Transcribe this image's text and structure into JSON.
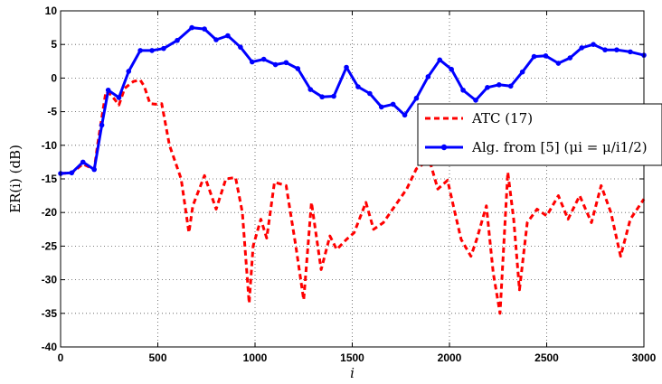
{
  "chart_data": {
    "type": "line",
    "title": "",
    "xlabel": "i",
    "ylabel": "ER(i) (dB)",
    "xlim": [
      0,
      3000
    ],
    "ylim": [
      -40,
      10
    ],
    "xticks": [
      0,
      500,
      1000,
      1500,
      2000,
      2500,
      3000
    ],
    "yticks": [
      -40,
      -35,
      -30,
      -25,
      -20,
      -15,
      -10,
      -5,
      0,
      5,
      10
    ],
    "grid": true,
    "legend_position": "center-right",
    "series": [
      {
        "name": "ATC (17)",
        "color": "#ff0000",
        "style": "dashed",
        "marker": "none",
        "x": [
          0,
          57,
          115,
          173,
          190,
          233,
          260,
          300,
          330,
          375,
          410,
          430,
          460,
          490,
          520,
          560,
          620,
          660,
          680,
          740,
          800,
          850,
          900,
          935,
          970,
          990,
          1030,
          1060,
          1100,
          1160,
          1210,
          1250,
          1290,
          1340,
          1385,
          1420,
          1470,
          1510,
          1570,
          1610,
          1660,
          1720,
          1780,
          1830,
          1880,
          1905,
          1940,
          1990,
          2020,
          2060,
          2110,
          2140,
          2190,
          2225,
          2260,
          2300,
          2330,
          2360,
          2400,
          2450,
          2500,
          2560,
          2610,
          2670,
          2730,
          2780,
          2830,
          2880,
          2930,
          3000
        ],
        "values": [
          -14.2,
          -14.1,
          -12.8,
          -13.6,
          -10.0,
          -2.0,
          -2.5,
          -4.0,
          -1.5,
          -0.5,
          -0.3,
          -1.2,
          -3.8,
          -3.9,
          -3.8,
          -10.0,
          -15.0,
          -23.0,
          -19.0,
          -14.5,
          -19.5,
          -15.0,
          -14.8,
          -20.0,
          -33.5,
          -25.0,
          -21.0,
          -23.8,
          -15.5,
          -16.0,
          -25.0,
          -33.0,
          -18.5,
          -28.5,
          -23.5,
          -25.5,
          -24.0,
          -23.0,
          -18.5,
          -22.5,
          -21.5,
          -19.0,
          -16.5,
          -13.5,
          -12.5,
          -13.0,
          -16.5,
          -15.2,
          -19.0,
          -24.0,
          -26.5,
          -24.0,
          -19.0,
          -29.0,
          -35.0,
          -14.0,
          -21.0,
          -31.5,
          -21.5,
          -19.5,
          -20.5,
          -17.5,
          -21.0,
          -17.5,
          -21.5,
          -16.0,
          -20.0,
          -26.5,
          -21.0,
          -18.0
        ]
      },
      {
        "name": "Alg. from [5] (μi = μ/i1/2)",
        "color": "#0000ff",
        "style": "solid",
        "marker": "dot",
        "x": [
          0,
          57,
          115,
          173,
          212,
          245,
          300,
          350,
          410,
          470,
          530,
          600,
          675,
          740,
          800,
          860,
          925,
          985,
          1045,
          1105,
          1160,
          1220,
          1285,
          1345,
          1405,
          1470,
          1530,
          1590,
          1650,
          1710,
          1770,
          1830,
          1890,
          1950,
          2010,
          2070,
          2135,
          2195,
          2255,
          2315,
          2375,
          2435,
          2495,
          2560,
          2620,
          2680,
          2740,
          2800,
          2860,
          2930,
          3000
        ],
        "values": [
          -14.2,
          -14.1,
          -12.5,
          -13.6,
          -7.0,
          -1.8,
          -2.9,
          1.0,
          4.1,
          4.1,
          4.4,
          5.6,
          7.5,
          7.3,
          5.7,
          6.3,
          4.6,
          2.4,
          2.8,
          2.0,
          2.3,
          1.4,
          -1.7,
          -2.8,
          -2.7,
          1.6,
          -1.3,
          -2.3,
          -4.3,
          -3.9,
          -5.5,
          -3.0,
          0.2,
          2.7,
          1.3,
          -1.8,
          -3.3,
          -1.4,
          -1.0,
          -1.2,
          0.9,
          3.2,
          3.3,
          2.2,
          3.0,
          4.5,
          5.0,
          4.2,
          4.2,
          3.9,
          3.4
        ]
      }
    ]
  }
}
